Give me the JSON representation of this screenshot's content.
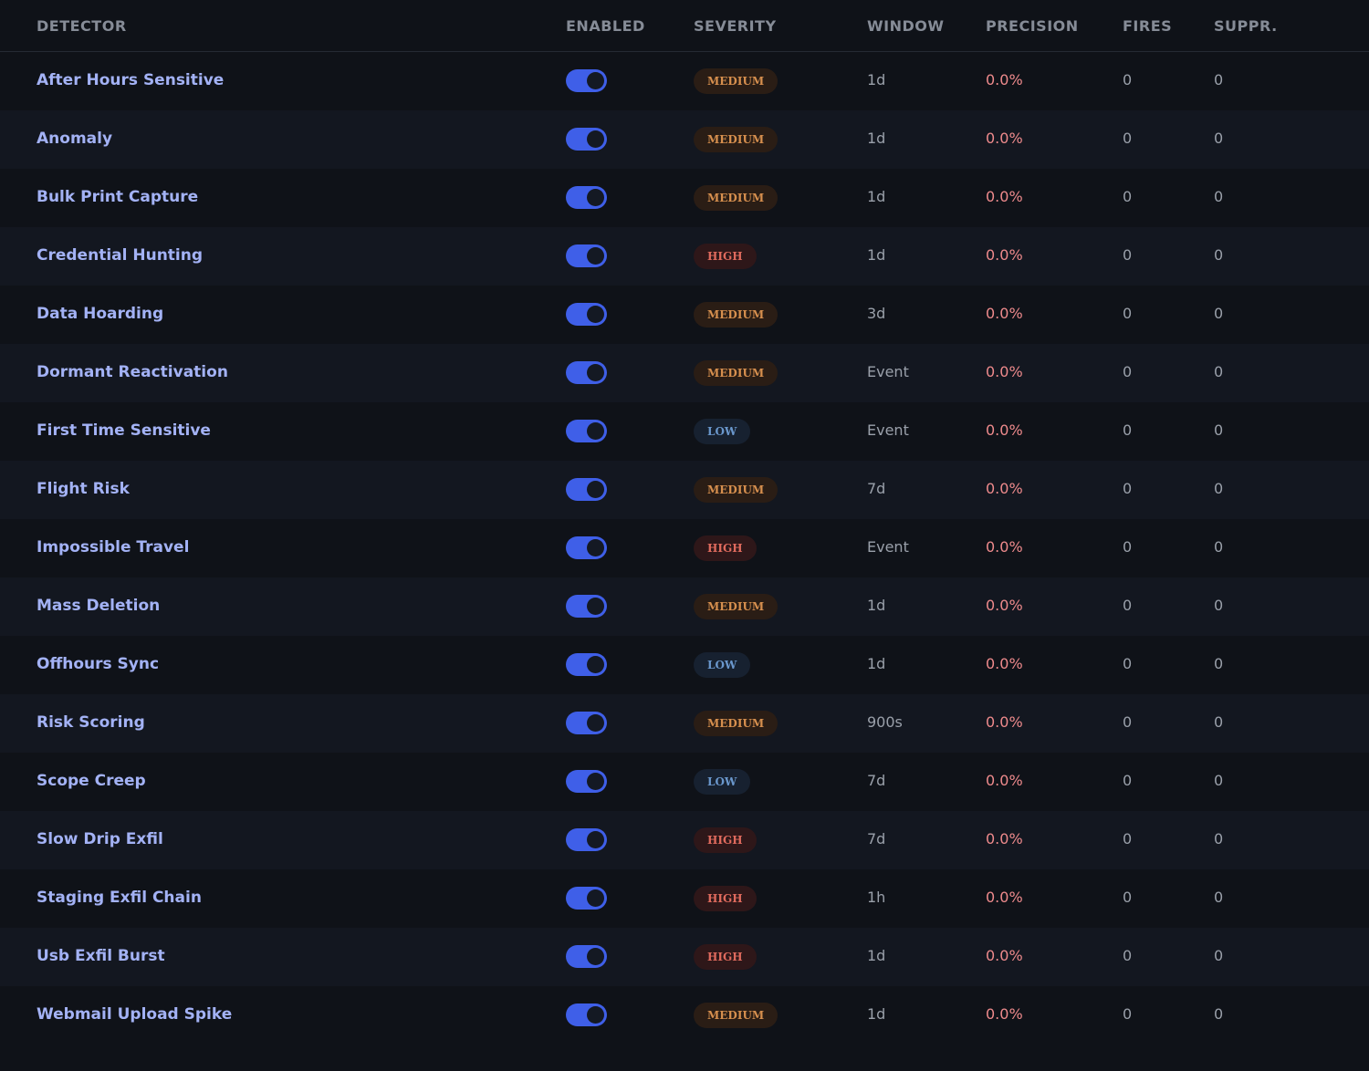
{
  "table": {
    "header": [
      "DETECTOR",
      "ENABLED",
      "SEVERITY",
      "WINDOW",
      "PRECISION",
      "FIRES",
      "SUPPR."
    ],
    "rows": [
      {
        "name": "After Hours Sensitive",
        "enabled": true,
        "severity": "MEDIUM",
        "window": "1d",
        "precision": "0.0%",
        "fires": 0,
        "suppr": 0
      },
      {
        "name": "Anomaly",
        "enabled": true,
        "severity": "MEDIUM",
        "window": "1d",
        "precision": "0.0%",
        "fires": 0,
        "suppr": 0
      },
      {
        "name": "Bulk Print Capture",
        "enabled": true,
        "severity": "MEDIUM",
        "window": "1d",
        "precision": "0.0%",
        "fires": 0,
        "suppr": 0
      },
      {
        "name": "Credential Hunting",
        "enabled": true,
        "severity": "HIGH",
        "window": "1d",
        "precision": "0.0%",
        "fires": 0,
        "suppr": 0
      },
      {
        "name": "Data Hoarding",
        "enabled": true,
        "severity": "MEDIUM",
        "window": "3d",
        "precision": "0.0%",
        "fires": 0,
        "suppr": 0
      },
      {
        "name": "Dormant Reactivation",
        "enabled": true,
        "severity": "MEDIUM",
        "window": "Event",
        "precision": "0.0%",
        "fires": 0,
        "suppr": 0
      },
      {
        "name": "First Time Sensitive",
        "enabled": true,
        "severity": "LOW",
        "window": "Event",
        "precision": "0.0%",
        "fires": 0,
        "suppr": 0
      },
      {
        "name": "Flight Risk",
        "enabled": true,
        "severity": "MEDIUM",
        "window": "7d",
        "precision": "0.0%",
        "fires": 0,
        "suppr": 0
      },
      {
        "name": "Impossible Travel",
        "enabled": true,
        "severity": "HIGH",
        "window": "Event",
        "precision": "0.0%",
        "fires": 0,
        "suppr": 0
      },
      {
        "name": "Mass Deletion",
        "enabled": true,
        "severity": "MEDIUM",
        "window": "1d",
        "precision": "0.0%",
        "fires": 0,
        "suppr": 0
      },
      {
        "name": "Offhours Sync",
        "enabled": true,
        "severity": "LOW",
        "window": "1d",
        "precision": "0.0%",
        "fires": 0,
        "suppr": 0
      },
      {
        "name": "Risk Scoring",
        "enabled": true,
        "severity": "MEDIUM",
        "window": "900s",
        "precision": "0.0%",
        "fires": 0,
        "suppr": 0
      },
      {
        "name": "Scope Creep",
        "enabled": true,
        "severity": "LOW",
        "window": "7d",
        "precision": "0.0%",
        "fires": 0,
        "suppr": 0
      },
      {
        "name": "Slow Drip Exfil",
        "enabled": true,
        "severity": "HIGH",
        "window": "7d",
        "precision": "0.0%",
        "fires": 0,
        "suppr": 0
      },
      {
        "name": "Staging Exfil Chain",
        "enabled": true,
        "severity": "HIGH",
        "window": "1h",
        "precision": "0.0%",
        "fires": 0,
        "suppr": 0
      },
      {
        "name": "Usb Exfil Burst",
        "enabled": true,
        "severity": "HIGH",
        "window": "1d",
        "precision": "0.0%",
        "fires": 0,
        "suppr": 0
      },
      {
        "name": "Webmail Upload Spike",
        "enabled": true,
        "severity": "MEDIUM",
        "window": "1d",
        "precision": "0.0%",
        "fires": 0,
        "suppr": 0
      }
    ]
  }
}
